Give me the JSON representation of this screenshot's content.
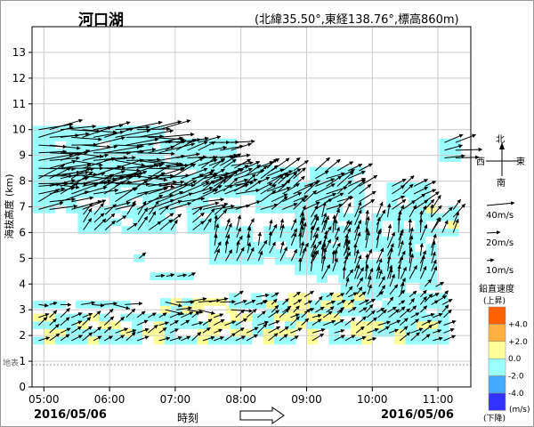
{
  "header": {
    "station": "河口湖",
    "location": "(北緯35.50°,東経138.76°,標高860m)"
  },
  "footer": {
    "date_left": "2016/05/06",
    "date_right": "2016/05/06",
    "time_label": "時刻"
  },
  "compass": {
    "north": "北",
    "south": "南",
    "east": "東",
    "west": "西"
  },
  "vector_legend": {
    "items": [
      {
        "label": "40m/s",
        "speed": 40
      },
      {
        "label": "20m/s",
        "speed": 20
      },
      {
        "label": "10m/s",
        "speed": 10
      }
    ]
  },
  "color_legend": {
    "title": "鉛直速度",
    "top_note": "(上昇)",
    "bottom_note": "(下降)",
    "unit": "(m/s)",
    "colors": [
      "#ff6000",
      "#ffb040",
      "#ffff99",
      "#99ffff",
      "#44aaff",
      "#3333ff"
    ],
    "tick_labels": [
      "+4.0",
      "+2.0",
      "0.0",
      "-2.0",
      "-4.0"
    ]
  },
  "chart_data": {
    "type": "wind-profile",
    "ylabel": "海抜高度 (km)",
    "ylim": [
      0,
      14
    ],
    "yticks": [
      "0",
      "1",
      "2",
      "3",
      "4",
      "5",
      "6",
      "7",
      "8",
      "9",
      "10",
      "11",
      "12",
      "13"
    ],
    "xticks": [
      "05:00",
      "06:00",
      "07:00",
      "08:00",
      "09:00",
      "10:00",
      "11:00"
    ],
    "x_range_hours": [
      4.82,
      11.5
    ],
    "ground_label": "地表",
    "ground_height_km": 0.86,
    "grid": true,
    "time_step_min": 10,
    "height_step_km": 0.3,
    "blocks": [
      {
        "t0": 4.92,
        "t1": 6.85,
        "h0": 7.9,
        "h1": 10.0,
        "w": "up",
        "spd": 34,
        "dir": 265
      },
      {
        "t0": 4.92,
        "t1": 8.0,
        "h0": 6.9,
        "h1": 8.3,
        "w": "up",
        "spd": 28,
        "dir": 250
      },
      {
        "t0": 6.85,
        "t1": 8.0,
        "h0": 8.6,
        "h1": 9.6,
        "w": "up",
        "spd": 22,
        "dir": 255
      },
      {
        "t0": 7.4,
        "t1": 8.7,
        "h0": 7.6,
        "h1": 8.6,
        "w": "up",
        "spd": 18,
        "dir": 240
      },
      {
        "t0": 5.6,
        "t1": 7.7,
        "h0": 6.1,
        "h1": 6.9,
        "w": "up",
        "spd": 16,
        "dir": 225
      },
      {
        "t0": 8.3,
        "t1": 9.9,
        "h0": 6.9,
        "h1": 8.6,
        "w": "up",
        "spd": 20,
        "dir": 240
      },
      {
        "t0": 10.3,
        "t1": 10.9,
        "h0": 6.9,
        "h1": 8.0,
        "w": "up",
        "spd": 16,
        "dir": 235
      },
      {
        "t0": 10.9,
        "t1": 11.3,
        "h0": 6.0,
        "h1": 7.0,
        "w": "mix",
        "spd": 16,
        "dir": 215
      },
      {
        "t0": 11.1,
        "t1": 11.3,
        "h0": 8.9,
        "h1": 9.6,
        "w": "up",
        "spd": 24,
        "dir": 255
      },
      {
        "t0": 7.6,
        "t1": 9.6,
        "h0": 4.9,
        "h1": 6.3,
        "w": "up",
        "spd": 14,
        "dir": 200
      },
      {
        "t0": 8.9,
        "t1": 11.0,
        "h0": 4.2,
        "h1": 6.6,
        "w": "up",
        "spd": 16,
        "dir": 195
      },
      {
        "t0": 9.6,
        "t1": 10.5,
        "h0": 3.6,
        "h1": 4.2,
        "w": "up",
        "spd": 12,
        "dir": 205
      },
      {
        "t0": 10.8,
        "t1": 11.1,
        "h0": 3.3,
        "h1": 4.0,
        "w": "up",
        "spd": 12,
        "dir": 230
      },
      {
        "t0": 6.7,
        "t1": 7.2,
        "h0": 4.3,
        "h1": 4.3,
        "w": "up",
        "spd": 10,
        "dir": 250
      },
      {
        "t0": 6.45,
        "t1": 6.45,
        "h0": 5.0,
        "h1": 5.0,
        "w": "up",
        "spd": 10,
        "dir": 245
      },
      {
        "t0": 4.92,
        "t1": 5.3,
        "h0": 3.2,
        "h1": 3.2,
        "w": "up",
        "spd": 10,
        "dir": 270
      },
      {
        "t0": 5.4,
        "t1": 6.3,
        "h0": 3.2,
        "h1": 3.2,
        "w": "up",
        "spd": 16,
        "dir": 275
      },
      {
        "t0": 6.85,
        "t1": 7.9,
        "h0": 3.0,
        "h1": 3.3,
        "w": "down",
        "spd": 20,
        "dir": 270
      },
      {
        "t0": 7.9,
        "t1": 8.3,
        "h0": 3.2,
        "h1": 3.5,
        "w": "up",
        "spd": 12,
        "dir": 250
      },
      {
        "t0": 8.3,
        "t1": 9.9,
        "h0": 2.9,
        "h1": 3.6,
        "w": "mix",
        "spd": 10,
        "dir": 235
      },
      {
        "t0": 9.9,
        "t1": 11.2,
        "h0": 2.9,
        "h1": 3.6,
        "w": "up",
        "spd": 10,
        "dir": 230
      },
      {
        "t0": 4.92,
        "t1": 11.2,
        "h0": 1.8,
        "h1": 2.7,
        "w": "mix",
        "spd": 12,
        "dir": 240
      }
    ]
  }
}
